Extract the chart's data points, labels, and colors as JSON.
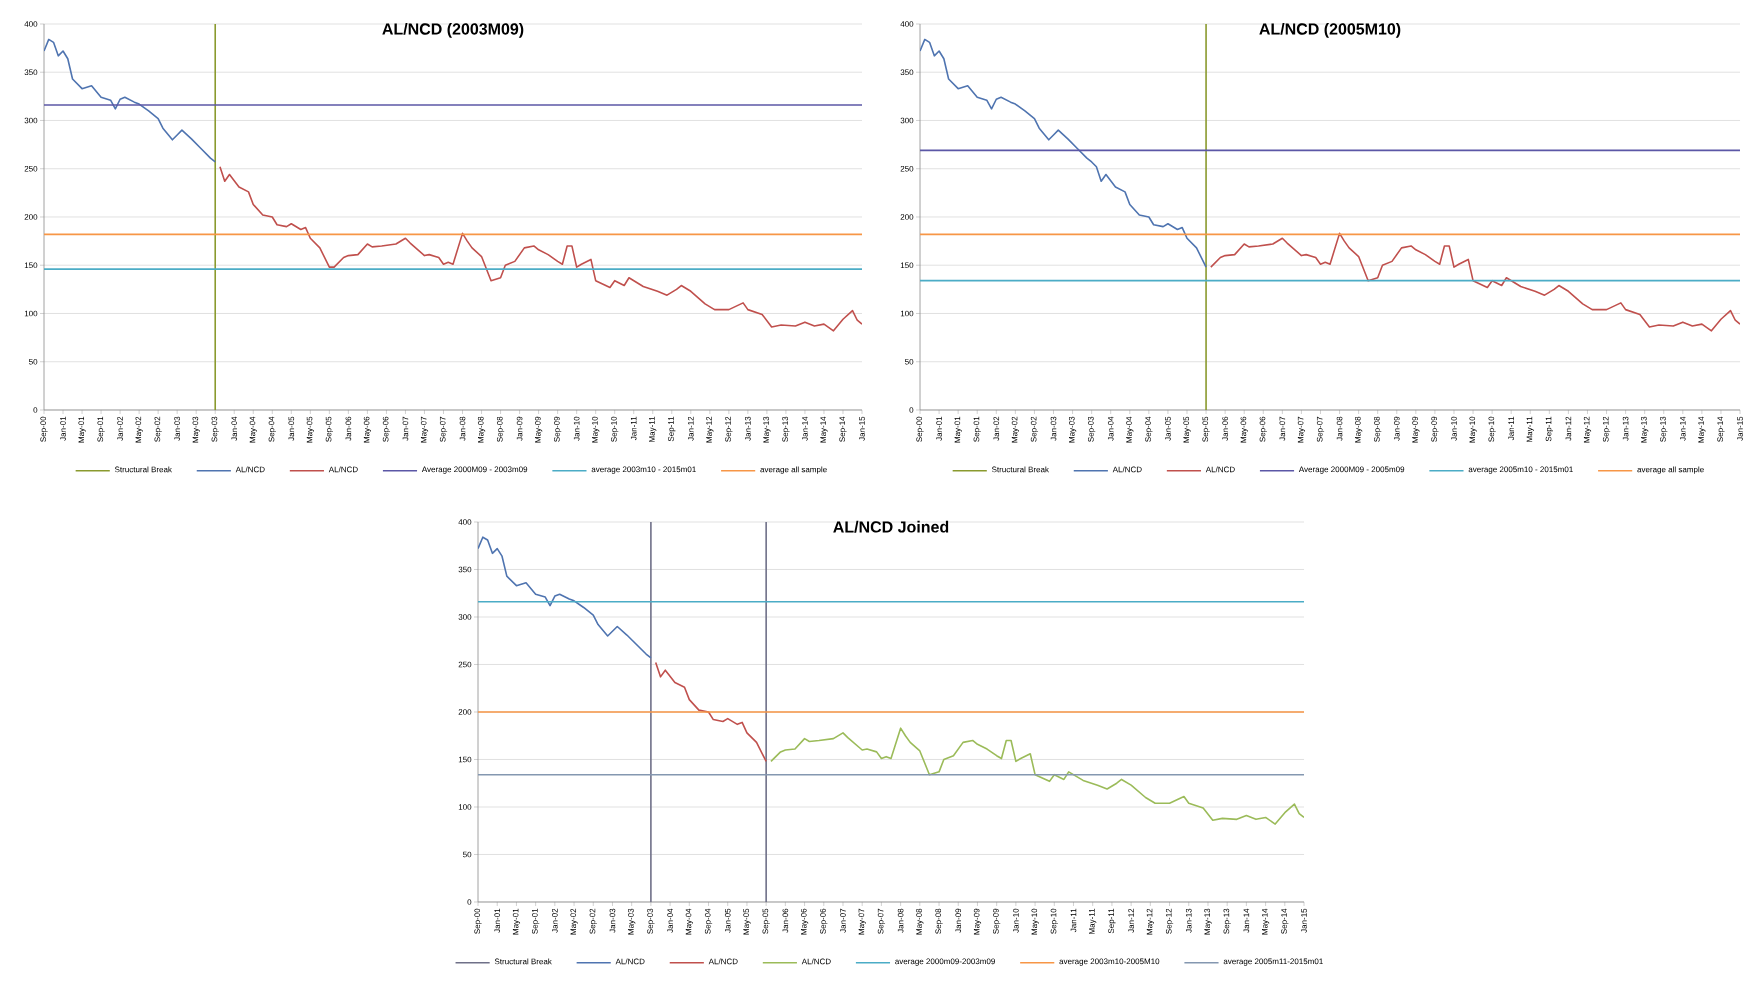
{
  "chart_data": [
    {
      "type": "line",
      "title": "AL/NCD (2003M09)",
      "xlim": [
        "2000-09",
        "2015-01"
      ],
      "ylim": [
        0,
        400
      ],
      "yticks": [
        0,
        50,
        100,
        150,
        200,
        250,
        300,
        350,
        400
      ],
      "grid": "y",
      "legend": "bottom",
      "xticks": [
        {
          "value": "2000-09",
          "label": "Sep-00"
        },
        {
          "value": "2001-01",
          "label": "Jan-01"
        },
        {
          "value": "2001-05",
          "label": "May-01"
        },
        {
          "value": "2001-09",
          "label": "Sep-01"
        },
        {
          "value": "2002-01",
          "label": "Jan-02"
        },
        {
          "value": "2002-05",
          "label": "May-02"
        },
        {
          "value": "2002-09",
          "label": "Sep-02"
        },
        {
          "value": "2003-01",
          "label": "Jan-03"
        },
        {
          "value": "2003-05",
          "label": "May-03"
        },
        {
          "value": "2003-09",
          "label": "Sep-03"
        },
        {
          "value": "2004-01",
          "label": "Jan-04"
        },
        {
          "value": "2004-05",
          "label": "May-04"
        },
        {
          "value": "2004-09",
          "label": "Sep-04"
        },
        {
          "value": "2005-01",
          "label": "Jan-05"
        },
        {
          "value": "2005-05",
          "label": "May-05"
        },
        {
          "value": "2005-09",
          "label": "Sep-05"
        },
        {
          "value": "2006-01",
          "label": "Jan-06"
        },
        {
          "value": "2006-05",
          "label": "May-06"
        },
        {
          "value": "2006-09",
          "label": "Sep-06"
        },
        {
          "value": "2007-01",
          "label": "Jan-07"
        },
        {
          "value": "2007-05",
          "label": "May-07"
        },
        {
          "value": "2007-09",
          "label": "Sep-07"
        },
        {
          "value": "2008-01",
          "label": "Jan-08"
        },
        {
          "value": "2008-05",
          "label": "May-08"
        },
        {
          "value": "2008-09",
          "label": "Sep-08"
        },
        {
          "value": "2009-01",
          "label": "Jan-09"
        },
        {
          "value": "2009-05",
          "label": "May-09"
        },
        {
          "value": "2009-09",
          "label": "Sep-09"
        },
        {
          "value": "2010-01",
          "label": "Jan-10"
        },
        {
          "value": "2010-05",
          "label": "May-10"
        },
        {
          "value": "2010-09",
          "label": "Sep-10"
        },
        {
          "value": "2011-01",
          "label": "Jan-11"
        },
        {
          "value": "2011-05",
          "label": "May-11"
        },
        {
          "value": "2011-09",
          "label": "Sep-11"
        },
        {
          "value": "2012-01",
          "label": "Jan-12"
        },
        {
          "value": "2012-05",
          "label": "May-12"
        },
        {
          "value": "2012-09",
          "label": "Sep-12"
        },
        {
          "value": "2013-01",
          "label": "Jan-13"
        },
        {
          "value": "2013-05",
          "label": "May-13"
        },
        {
          "value": "2013-09",
          "label": "Sep-13"
        },
        {
          "value": "2014-01",
          "label": "Jan-14"
        },
        {
          "value": "2014-05",
          "label": "May-14"
        },
        {
          "value": "2014-09",
          "label": "Sep-14"
        },
        {
          "value": "2015-01",
          "label": "Jan-15"
        }
      ],
      "series": [
        {
          "name": "AL/NCD",
          "color": "#4f74b0",
          "x": [
            "2000-09",
            "2000-10",
            "2000-11",
            "2000-12",
            "2001-01",
            "2001-02",
            "2001-03",
            "2001-05",
            "2001-07",
            "2001-09",
            "2001-11",
            "2001-12",
            "2002-01",
            "2002-02",
            "2002-04",
            "2002-05",
            "2002-07",
            "2002-09",
            "2002-10",
            "2002-12",
            "2003-01",
            "2003-02",
            "2003-04",
            "2003-06",
            "2003-08",
            "2003-09"
          ],
          "values": [
            372,
            384,
            381,
            367,
            372,
            364,
            343,
            333,
            336,
            324,
            321,
            312,
            322,
            324,
            319,
            317,
            310,
            302,
            292,
            280,
            285,
            290,
            281,
            271,
            261,
            257
          ]
        },
        {
          "name": "AL/NCD",
          "color": "#c0504d",
          "x": [
            "2003-10",
            "2003-11",
            "2003-12",
            "2004-02",
            "2004-04",
            "2004-05",
            "2004-07",
            "2004-09",
            "2004-10",
            "2004-12",
            "2005-01",
            "2005-03",
            "2005-04",
            "2005-05",
            "2005-07",
            "2005-09",
            "2005-10",
            "2005-12",
            "2006-01",
            "2006-03",
            "2006-05",
            "2006-06",
            "2006-08",
            "2006-11",
            "2007-01",
            "2007-02",
            "2007-05",
            "2007-06",
            "2007-08",
            "2007-09",
            "2007-10",
            "2007-11",
            "2008-01",
            "2008-02",
            "2008-03",
            "2008-05",
            "2008-07",
            "2008-09",
            "2008-10",
            "2008-12",
            "2009-02",
            "2009-04",
            "2009-05",
            "2009-07",
            "2009-09",
            "2009-10",
            "2009-11",
            "2009-12",
            "2010-01",
            "2010-02",
            "2010-04",
            "2010-05",
            "2010-08",
            "2010-09",
            "2010-11",
            "2010-12",
            "2011-03",
            "2011-06",
            "2011-08",
            "2011-10",
            "2011-11",
            "2012-01",
            "2012-04",
            "2012-06",
            "2012-09",
            "2012-12",
            "2013-01",
            "2013-04",
            "2013-06",
            "2013-08",
            "2013-11",
            "2014-01",
            "2014-03",
            "2014-05",
            "2014-07",
            "2014-09",
            "2014-11",
            "2014-12",
            "2015-01"
          ],
          "values": [
            252,
            237,
            244,
            231,
            226,
            213,
            202,
            200,
            192,
            190,
            193,
            187,
            189,
            178,
            168,
            148,
            148,
            158,
            160,
            161,
            172,
            169,
            170,
            172,
            178,
            173,
            160,
            161,
            158,
            151,
            153,
            151,
            183,
            175,
            168,
            159,
            134,
            137,
            150,
            154,
            168,
            170,
            166,
            161,
            154,
            151,
            170,
            170,
            148,
            151,
            156,
            134,
            127,
            134,
            129,
            137,
            128,
            123,
            119,
            125,
            129,
            123,
            110,
            104,
            104,
            111,
            104,
            99,
            86,
            88,
            87,
            91,
            87,
            89,
            82,
            94,
            103,
            93,
            89
          ]
        }
      ],
      "ref_lines": [
        {
          "axis": "x",
          "value": "2003-09",
          "label": "Structural Break",
          "color": "#8a9a2e"
        },
        {
          "axis": "y",
          "value": 316,
          "label": "Average 2000M09 - 2003m09",
          "color": "#5b57a6"
        },
        {
          "axis": "y",
          "value": 146,
          "label": "average 2003m10 - 2015m01",
          "color": "#4bacc6"
        },
        {
          "axis": "y",
          "value": 182,
          "label": "average all sample",
          "color": "#f79646"
        }
      ]
    },
    {
      "type": "line",
      "title": "AL/NCD (2005M10)",
      "xlim": [
        "2000-09",
        "2015-01"
      ],
      "ylim": [
        0,
        400
      ],
      "yticks": [
        0,
        50,
        100,
        150,
        200,
        250,
        300,
        350,
        400
      ],
      "grid": "y",
      "legend": "bottom",
      "xticks": [
        {
          "value": "2000-09",
          "label": "Sep-00"
        },
        {
          "value": "2001-01",
          "label": "Jan-01"
        },
        {
          "value": "2001-05",
          "label": "May-01"
        },
        {
          "value": "2001-09",
          "label": "Sep-01"
        },
        {
          "value": "2002-01",
          "label": "Jan-02"
        },
        {
          "value": "2002-05",
          "label": "May-02"
        },
        {
          "value": "2002-09",
          "label": "Sep-02"
        },
        {
          "value": "2003-01",
          "label": "Jan-03"
        },
        {
          "value": "2003-05",
          "label": "May-03"
        },
        {
          "value": "2003-09",
          "label": "Sep-03"
        },
        {
          "value": "2004-01",
          "label": "Jan-04"
        },
        {
          "value": "2004-05",
          "label": "May-04"
        },
        {
          "value": "2004-09",
          "label": "Sep-04"
        },
        {
          "value": "2005-01",
          "label": "Jan-05"
        },
        {
          "value": "2005-05",
          "label": "May-05"
        },
        {
          "value": "2005-09",
          "label": "Sep-05"
        },
        {
          "value": "2006-01",
          "label": "Jan-06"
        },
        {
          "value": "2006-05",
          "label": "May-06"
        },
        {
          "value": "2006-09",
          "label": "Sep-06"
        },
        {
          "value": "2007-01",
          "label": "Jan-07"
        },
        {
          "value": "2007-05",
          "label": "May-07"
        },
        {
          "value": "2007-09",
          "label": "Sep-07"
        },
        {
          "value": "2008-01",
          "label": "Jan-08"
        },
        {
          "value": "2008-05",
          "label": "May-08"
        },
        {
          "value": "2008-09",
          "label": "Sep-08"
        },
        {
          "value": "2009-01",
          "label": "Jan-09"
        },
        {
          "value": "2009-05",
          "label": "May-09"
        },
        {
          "value": "2009-09",
          "label": "Sep-09"
        },
        {
          "value": "2010-01",
          "label": "Jan-10"
        },
        {
          "value": "2010-05",
          "label": "May-10"
        },
        {
          "value": "2010-09",
          "label": "Sep-10"
        },
        {
          "value": "2011-01",
          "label": "Jan-11"
        },
        {
          "value": "2011-05",
          "label": "May-11"
        },
        {
          "value": "2011-09",
          "label": "Sep-11"
        },
        {
          "value": "2012-01",
          "label": "Jan-12"
        },
        {
          "value": "2012-05",
          "label": "May-12"
        },
        {
          "value": "2012-09",
          "label": "Sep-12"
        },
        {
          "value": "2013-01",
          "label": "Jan-13"
        },
        {
          "value": "2013-05",
          "label": "May-13"
        },
        {
          "value": "2013-09",
          "label": "Sep-13"
        },
        {
          "value": "2014-01",
          "label": "Jan-14"
        },
        {
          "value": "2014-05",
          "label": "May-14"
        },
        {
          "value": "2014-09",
          "label": "Sep-14"
        },
        {
          "value": "2015-01",
          "label": "Jan-15"
        }
      ],
      "series": [
        {
          "name": "AL/NCD",
          "color": "#4f74b0",
          "x": [
            "2000-09",
            "2000-10",
            "2000-11",
            "2000-12",
            "2001-01",
            "2001-02",
            "2001-03",
            "2001-05",
            "2001-07",
            "2001-09",
            "2001-11",
            "2001-12",
            "2002-01",
            "2002-02",
            "2002-04",
            "2002-05",
            "2002-07",
            "2002-09",
            "2002-10",
            "2002-12",
            "2003-01",
            "2003-02",
            "2003-04",
            "2003-06",
            "2003-08",
            "2003-09",
            "2003-10",
            "2003-11",
            "2003-12",
            "2004-02",
            "2004-04",
            "2004-05",
            "2004-07",
            "2004-09",
            "2004-10",
            "2004-12",
            "2005-01",
            "2005-03",
            "2005-04",
            "2005-05",
            "2005-07",
            "2005-09"
          ],
          "values": [
            372,
            384,
            381,
            367,
            372,
            364,
            343,
            333,
            336,
            324,
            321,
            312,
            322,
            324,
            319,
            317,
            310,
            302,
            292,
            280,
            285,
            290,
            281,
            271,
            261,
            257,
            252,
            237,
            244,
            231,
            226,
            213,
            202,
            200,
            192,
            190,
            193,
            187,
            189,
            178,
            168,
            148
          ]
        },
        {
          "name": "AL/NCD",
          "color": "#c0504d",
          "x": [
            "2005-10",
            "2005-12",
            "2006-01",
            "2006-03",
            "2006-05",
            "2006-06",
            "2006-08",
            "2006-11",
            "2007-01",
            "2007-02",
            "2007-05",
            "2007-06",
            "2007-08",
            "2007-09",
            "2007-10",
            "2007-11",
            "2008-01",
            "2008-02",
            "2008-03",
            "2008-05",
            "2008-07",
            "2008-09",
            "2008-10",
            "2008-12",
            "2009-02",
            "2009-04",
            "2009-05",
            "2009-07",
            "2009-09",
            "2009-10",
            "2009-11",
            "2009-12",
            "2010-01",
            "2010-02",
            "2010-04",
            "2010-05",
            "2010-08",
            "2010-09",
            "2010-11",
            "2010-12",
            "2011-03",
            "2011-06",
            "2011-08",
            "2011-10",
            "2011-11",
            "2012-01",
            "2012-04",
            "2012-06",
            "2012-09",
            "2012-12",
            "2013-01",
            "2013-04",
            "2013-06",
            "2013-08",
            "2013-11",
            "2014-01",
            "2014-03",
            "2014-05",
            "2014-07",
            "2014-09",
            "2014-11",
            "2014-12",
            "2015-01"
          ],
          "values": [
            148,
            158,
            160,
            161,
            172,
            169,
            170,
            172,
            178,
            173,
            160,
            161,
            158,
            151,
            153,
            151,
            183,
            175,
            168,
            159,
            134,
            137,
            150,
            154,
            168,
            170,
            166,
            161,
            154,
            151,
            170,
            170,
            148,
            151,
            156,
            134,
            127,
            134,
            129,
            137,
            128,
            123,
            119,
            125,
            129,
            123,
            110,
            104,
            104,
            111,
            104,
            99,
            86,
            88,
            87,
            91,
            87,
            89,
            82,
            94,
            103,
            93,
            89
          ]
        }
      ],
      "ref_lines": [
        {
          "axis": "x",
          "value": "2005-09",
          "label": "Structural Break",
          "color": "#8a9a2e"
        },
        {
          "axis": "y",
          "value": 269,
          "label": "Average 2000M09 - 2005m09",
          "color": "#5b57a6"
        },
        {
          "axis": "y",
          "value": 134,
          "label": "average 2005m10 - 2015m01",
          "color": "#4bacc6"
        },
        {
          "axis": "y",
          "value": 182,
          "label": "average all sample",
          "color": "#f79646"
        }
      ]
    },
    {
      "type": "line",
      "title": "AL/NCD Joined",
      "xlim": [
        "2000-09",
        "2015-01"
      ],
      "ylim": [
        0,
        400
      ],
      "yticks": [
        0,
        50,
        100,
        150,
        200,
        250,
        300,
        350,
        400
      ],
      "grid": "y",
      "legend": "bottom",
      "xticks": [
        {
          "value": "2000-09",
          "label": "Sep-00"
        },
        {
          "value": "2001-01",
          "label": "Jan-01"
        },
        {
          "value": "2001-05",
          "label": "May-01"
        },
        {
          "value": "2001-09",
          "label": "Sep-01"
        },
        {
          "value": "2002-01",
          "label": "Jan-02"
        },
        {
          "value": "2002-05",
          "label": "May-02"
        },
        {
          "value": "2002-09",
          "label": "Sep-02"
        },
        {
          "value": "2003-01",
          "label": "Jan-03"
        },
        {
          "value": "2003-05",
          "label": "May-03"
        },
        {
          "value": "2003-09",
          "label": "Sep-03"
        },
        {
          "value": "2004-01",
          "label": "Jan-04"
        },
        {
          "value": "2004-05",
          "label": "May-04"
        },
        {
          "value": "2004-09",
          "label": "Sep-04"
        },
        {
          "value": "2005-01",
          "label": "Jan-05"
        },
        {
          "value": "2005-05",
          "label": "May-05"
        },
        {
          "value": "2005-09",
          "label": "Sep-05"
        },
        {
          "value": "2006-01",
          "label": "Jan-06"
        },
        {
          "value": "2006-05",
          "label": "May-06"
        },
        {
          "value": "2006-09",
          "label": "Sep-06"
        },
        {
          "value": "2007-01",
          "label": "Jan-07"
        },
        {
          "value": "2007-05",
          "label": "May-07"
        },
        {
          "value": "2007-09",
          "label": "Sep-07"
        },
        {
          "value": "2008-01",
          "label": "Jan-08"
        },
        {
          "value": "2008-05",
          "label": "May-08"
        },
        {
          "value": "2008-09",
          "label": "Sep-08"
        },
        {
          "value": "2009-01",
          "label": "Jan-09"
        },
        {
          "value": "2009-05",
          "label": "May-09"
        },
        {
          "value": "2009-09",
          "label": "Sep-09"
        },
        {
          "value": "2010-01",
          "label": "Jan-10"
        },
        {
          "value": "2010-05",
          "label": "May-10"
        },
        {
          "value": "2010-09",
          "label": "Sep-10"
        },
        {
          "value": "2011-01",
          "label": "Jan-11"
        },
        {
          "value": "2011-05",
          "label": "May-11"
        },
        {
          "value": "2011-09",
          "label": "Sep-11"
        },
        {
          "value": "2012-01",
          "label": "Jan-12"
        },
        {
          "value": "2012-05",
          "label": "May-12"
        },
        {
          "value": "2012-09",
          "label": "Sep-12"
        },
        {
          "value": "2013-01",
          "label": "Jan-13"
        },
        {
          "value": "2013-05",
          "label": "May-13"
        },
        {
          "value": "2013-09",
          "label": "Sep-13"
        },
        {
          "value": "2014-01",
          "label": "Jan-14"
        },
        {
          "value": "2014-05",
          "label": "May-14"
        },
        {
          "value": "2014-09",
          "label": "Sep-14"
        },
        {
          "value": "2015-01",
          "label": "Jan-15"
        }
      ],
      "series": [
        {
          "name": "AL/NCD",
          "color": "#4f74b0",
          "x": [
            "2000-09",
            "2000-10",
            "2000-11",
            "2000-12",
            "2001-01",
            "2001-02",
            "2001-03",
            "2001-05",
            "2001-07",
            "2001-09",
            "2001-11",
            "2001-12",
            "2002-01",
            "2002-02",
            "2002-04",
            "2002-05",
            "2002-07",
            "2002-09",
            "2002-10",
            "2002-12",
            "2003-01",
            "2003-02",
            "2003-04",
            "2003-06",
            "2003-08",
            "2003-09"
          ],
          "values": [
            372,
            384,
            381,
            367,
            372,
            364,
            343,
            333,
            336,
            324,
            321,
            312,
            322,
            324,
            319,
            317,
            310,
            302,
            292,
            280,
            285,
            290,
            281,
            271,
            261,
            257
          ]
        },
        {
          "name": "AL/NCD",
          "color": "#c0504d",
          "x": [
            "2003-10",
            "2003-11",
            "2003-12",
            "2004-02",
            "2004-04",
            "2004-05",
            "2004-07",
            "2004-09",
            "2004-10",
            "2004-12",
            "2005-01",
            "2005-03",
            "2005-04",
            "2005-05",
            "2005-07",
            "2005-09"
          ],
          "values": [
            252,
            237,
            244,
            231,
            226,
            213,
            202,
            200,
            192,
            190,
            193,
            187,
            189,
            178,
            168,
            148
          ]
        },
        {
          "name": "AL/NCD",
          "color": "#9bbb59",
          "x": [
            "2005-10",
            "2005-12",
            "2006-01",
            "2006-03",
            "2006-05",
            "2006-06",
            "2006-08",
            "2006-11",
            "2007-01",
            "2007-02",
            "2007-05",
            "2007-06",
            "2007-08",
            "2007-09",
            "2007-10",
            "2007-11",
            "2008-01",
            "2008-02",
            "2008-03",
            "2008-05",
            "2008-07",
            "2008-09",
            "2008-10",
            "2008-12",
            "2009-02",
            "2009-04",
            "2009-05",
            "2009-07",
            "2009-09",
            "2009-10",
            "2009-11",
            "2009-12",
            "2010-01",
            "2010-02",
            "2010-04",
            "2010-05",
            "2010-08",
            "2010-09",
            "2010-11",
            "2010-12",
            "2011-03",
            "2011-06",
            "2011-08",
            "2011-10",
            "2011-11",
            "2012-01",
            "2012-04",
            "2012-06",
            "2012-09",
            "2012-12",
            "2013-01",
            "2013-04",
            "2013-06",
            "2013-08",
            "2013-11",
            "2014-01",
            "2014-03",
            "2014-05",
            "2014-07",
            "2014-09",
            "2014-11",
            "2014-12",
            "2015-01"
          ],
          "values": [
            148,
            158,
            160,
            161,
            172,
            169,
            170,
            172,
            178,
            173,
            160,
            161,
            158,
            151,
            153,
            151,
            183,
            175,
            168,
            159,
            134,
            137,
            150,
            154,
            168,
            170,
            166,
            161,
            154,
            151,
            170,
            170,
            148,
            151,
            156,
            134,
            127,
            134,
            129,
            137,
            128,
            123,
            119,
            125,
            129,
            123,
            110,
            104,
            104,
            111,
            104,
            99,
            86,
            88,
            87,
            91,
            87,
            89,
            82,
            94,
            103,
            93,
            89
          ]
        }
      ],
      "ref_lines": [
        {
          "axis": "x",
          "value": "2003-09",
          "label": "Structural Break",
          "color": "#6f7088"
        },
        {
          "axis": "x",
          "value": "2005-09",
          "color": "#6f7088"
        },
        {
          "axis": "y",
          "value": 316,
          "label": "average 2000m09-2003m09",
          "color": "#4bacc6"
        },
        {
          "axis": "y",
          "value": 200,
          "label": "average 2003m10-2005M10",
          "color": "#f79646"
        },
        {
          "axis": "y",
          "value": 134,
          "label": "average 2005m11-2015m01",
          "color": "#8497b0"
        }
      ]
    }
  ]
}
